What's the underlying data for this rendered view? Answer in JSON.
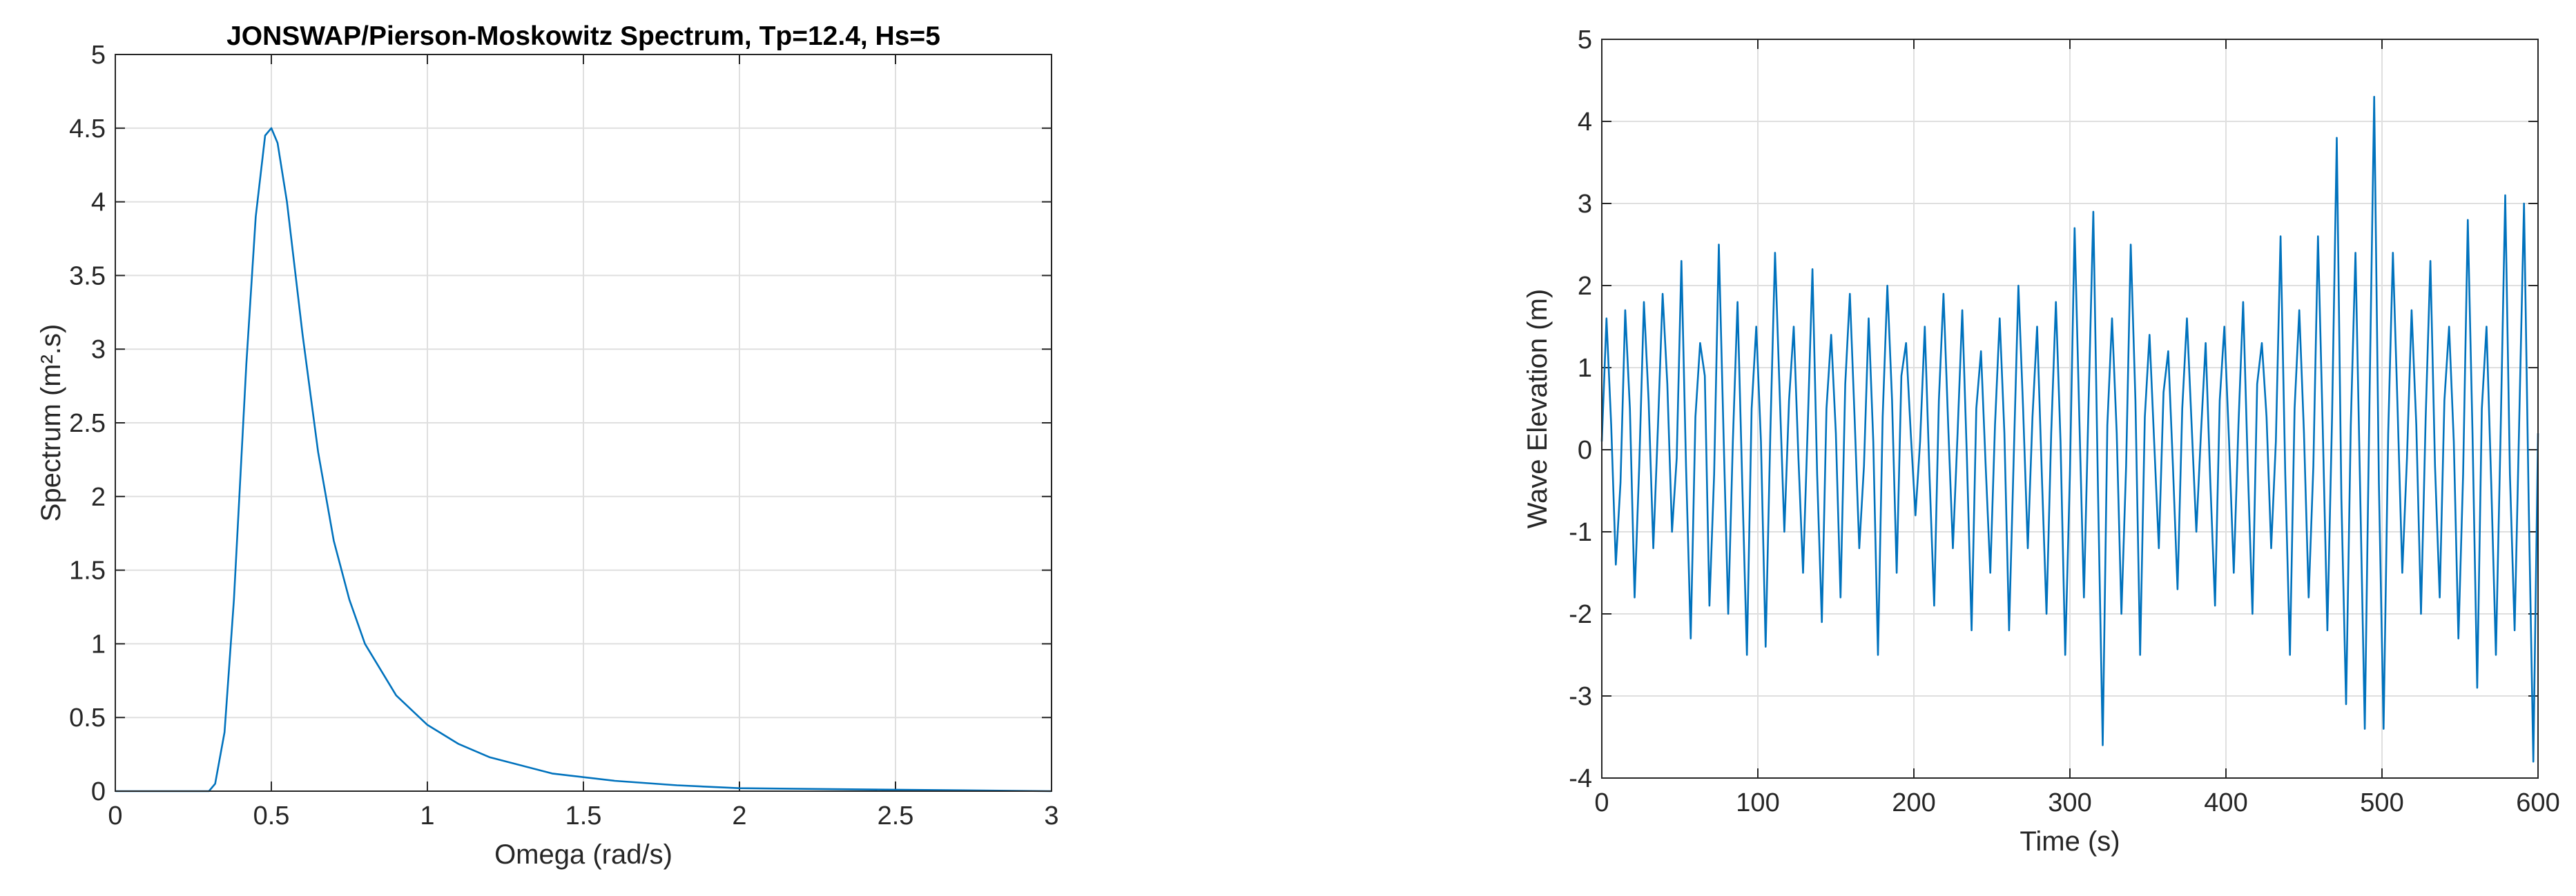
{
  "chart_data": [
    {
      "type": "line",
      "title": "JONSWAP/Pierson-Moskowitz Spectrum, Tp=12.4, Hs=5",
      "xlabel": "Omega (rad/s)",
      "ylabel": "Spectrum (m².s)",
      "x": [
        0,
        0.25,
        0.3,
        0.32,
        0.35,
        0.38,
        0.4,
        0.42,
        0.45,
        0.48,
        0.5,
        0.52,
        0.55,
        0.6,
        0.65,
        0.7,
        0.75,
        0.8,
        0.9,
        1.0,
        1.1,
        1.2,
        1.4,
        1.6,
        1.8,
        2.0,
        2.5,
        3.0
      ],
      "series": [
        {
          "color": "#0072bd",
          "values": [
            0,
            0,
            0,
            0.05,
            0.4,
            1.3,
            2.1,
            2.9,
            3.9,
            4.45,
            4.5,
            4.4,
            4.0,
            3.1,
            2.3,
            1.7,
            1.3,
            1.0,
            0.65,
            0.45,
            0.32,
            0.23,
            0.12,
            0.07,
            0.04,
            0.02,
            0.01,
            0
          ]
        }
      ],
      "xlim": [
        0,
        3
      ],
      "xticks": [
        0,
        0.5,
        1,
        1.5,
        2,
        2.5,
        3
      ],
      "ylim": [
        0,
        5
      ],
      "yticks": [
        0,
        0.5,
        1,
        1.5,
        2,
        2.5,
        3,
        3.5,
        4,
        4.5,
        5
      ],
      "grid": true
    },
    {
      "type": "line",
      "xlabel": "Time (s)",
      "ylabel": "Wave Elevation (m)",
      "x": [
        0,
        3,
        6,
        9,
        12,
        15,
        18,
        21,
        24,
        27,
        30,
        33,
        36,
        39,
        42,
        45,
        48,
        51,
        54,
        57,
        60,
        63,
        66,
        69,
        72,
        75,
        78,
        81,
        84,
        87,
        90,
        93,
        96,
        99,
        102,
        105,
        108,
        111,
        114,
        117,
        120,
        123,
        126,
        129,
        132,
        135,
        138,
        141,
        144,
        147,
        150,
        153,
        156,
        159,
        162,
        165,
        168,
        171,
        174,
        177,
        180,
        183,
        186,
        189,
        192,
        195,
        198,
        201,
        204,
        207,
        210,
        213,
        216,
        219,
        222,
        225,
        228,
        231,
        234,
        237,
        240,
        243,
        246,
        249,
        252,
        255,
        258,
        261,
        264,
        267,
        270,
        273,
        276,
        279,
        282,
        285,
        288,
        291,
        294,
        297,
        300,
        303,
        306,
        309,
        312,
        315,
        318,
        321,
        324,
        327,
        330,
        333,
        336,
        339,
        342,
        345,
        348,
        351,
        354,
        357,
        360,
        363,
        366,
        369,
        372,
        375,
        378,
        381,
        384,
        387,
        390,
        393,
        396,
        399,
        402,
        405,
        408,
        411,
        414,
        417,
        420,
        423,
        426,
        429,
        432,
        435,
        438,
        441,
        444,
        447,
        450,
        453,
        456,
        459,
        462,
        465,
        468,
        471,
        474,
        477,
        480,
        483,
        486,
        489,
        492,
        495,
        498,
        501,
        504,
        507,
        510,
        513,
        516,
        519,
        522,
        525,
        528,
        531,
        534,
        537,
        540,
        543,
        546,
        549,
        552,
        555,
        558,
        561,
        564,
        567,
        570,
        573,
        576,
        579,
        582,
        585,
        588,
        591,
        594,
        597,
        600
      ],
      "series": [
        {
          "color": "#0072bd",
          "values": [
            0.1,
            1.6,
            0.3,
            -1.4,
            -0.4,
            1.7,
            0.5,
            -1.8,
            -0.2,
            1.8,
            0.6,
            -1.2,
            0.3,
            1.9,
            0.8,
            -1.0,
            -0.1,
            2.3,
            -0.2,
            -2.3,
            0.4,
            1.3,
            0.9,
            -1.9,
            -0.3,
            2.5,
            0.2,
            -2.0,
            0.1,
            1.8,
            -0.4,
            -2.5,
            0.5,
            1.5,
            0.1,
            -2.4,
            0.2,
            2.4,
            0.7,
            -1.0,
            0.6,
            1.5,
            -0.1,
            -1.5,
            0.3,
            2.2,
            -0.3,
            -2.1,
            0.5,
            1.4,
            0.2,
            -1.8,
            0.8,
            1.9,
            0.4,
            -1.2,
            -0.2,
            1.6,
            0.1,
            -2.5,
            0.4,
            2.0,
            0.6,
            -1.5,
            0.9,
            1.3,
            0.2,
            -0.8,
            0.1,
            1.5,
            -0.3,
            -1.9,
            0.6,
            1.9,
            0.3,
            -1.2,
            0.2,
            1.7,
            -0.1,
            -2.2,
            0.5,
            1.2,
            -0.2,
            -1.5,
            0.3,
            1.6,
            0.2,
            -2.2,
            -0.1,
            2.0,
            0.5,
            -1.2,
            0.4,
            1.5,
            -0.3,
            -2.0,
            0.2,
            1.8,
            0.1,
            -2.5,
            -0.3,
            2.7,
            0.4,
            -1.8,
            0.6,
            2.9,
            -0.5,
            -3.6,
            0.3,
            1.6,
            0.2,
            -2.0,
            -0.2,
            2.5,
            0.6,
            -2.5,
            0.4,
            1.4,
            0.1,
            -1.2,
            0.7,
            1.2,
            -0.2,
            -1.7,
            0.5,
            1.6,
            0.3,
            -1.0,
            0.2,
            1.3,
            -0.4,
            -1.9,
            0.6,
            1.5,
            0.1,
            -1.5,
            0.3,
            1.8,
            -0.2,
            -2.0,
            0.8,
            1.3,
            0.4,
            -1.2,
            0.1,
            2.6,
            -0.3,
            -2.5,
            0.5,
            1.7,
            0.2,
            -1.8,
            -0.2,
            2.6,
            0.3,
            -2.2,
            0.4,
            3.8,
            -0.6,
            -3.1,
            0.3,
            2.4,
            -0.5,
            -3.4,
            0.6,
            4.3,
            -0.4,
            -3.4,
            0.2,
            2.4,
            0.5,
            -1.5,
            -0.1,
            1.7,
            0.3,
            -2.0,
            0.4,
            2.3,
            -0.2,
            -1.8,
            0.6,
            1.5,
            0.1,
            -2.3,
            -0.3,
            2.8,
            0.2,
            -2.9,
            0.5,
            1.5,
            -0.4,
            -2.5,
            0.2,
            3.1,
            -0.3,
            -2.2,
            0.4,
            3.0,
            -0.6,
            -3.8,
            0.2
          ]
        }
      ],
      "xlim": [
        0,
        600
      ],
      "xticks": [
        0,
        100,
        200,
        300,
        400,
        500,
        600
      ],
      "ylim": [
        -4,
        5
      ],
      "yticks": [
        -4,
        -3,
        -2,
        -1,
        0,
        1,
        2,
        3,
        4,
        5
      ],
      "grid": true
    }
  ]
}
